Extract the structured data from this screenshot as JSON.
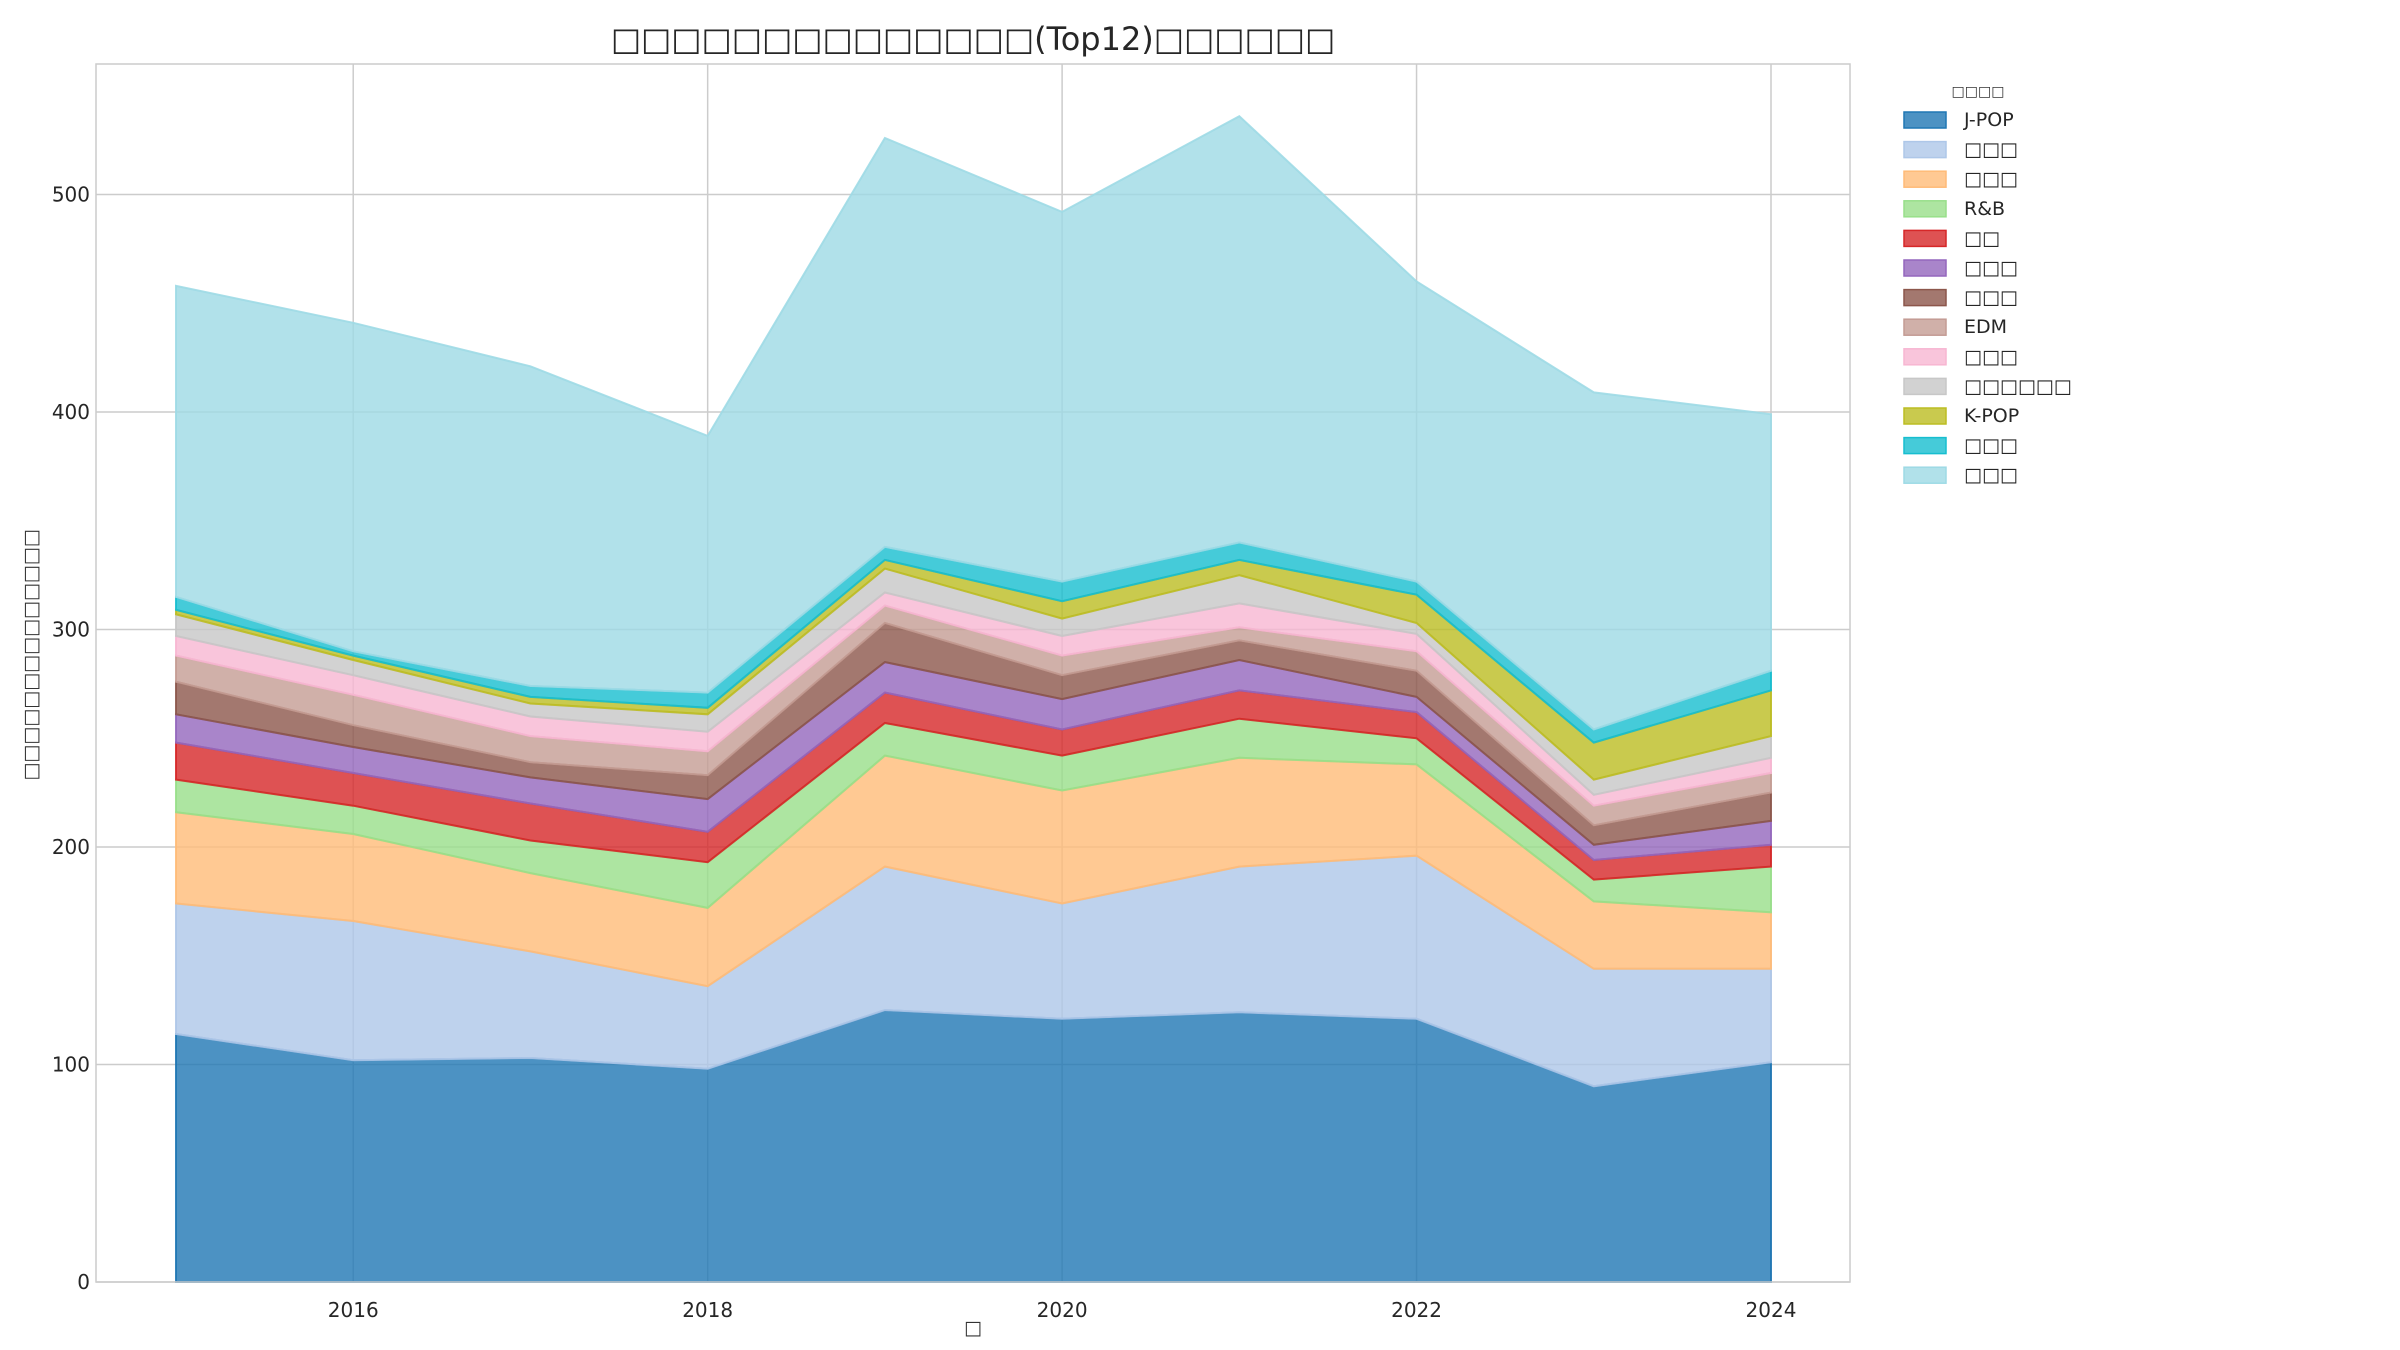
{
  "chart_data": {
    "type": "area",
    "stacked": true,
    "title": "□□□□□□□□□□□□□□(Top12)□□□□□□",
    "xlabel": "□",
    "ylabel": "□□□□□□□□□□□□□□",
    "x": [
      2015,
      2016,
      2017,
      2018,
      2019,
      2020,
      2021,
      2022,
      2023,
      2024
    ],
    "xticks": [
      2016,
      2018,
      2020,
      2022,
      2024
    ],
    "ylim": [
      0,
      560
    ],
    "yticks": [
      0,
      100,
      200,
      300,
      400,
      500
    ],
    "grid": true,
    "legend": {
      "title": "□□□□",
      "placement": "outside-right-top"
    },
    "series": [
      {
        "name": "J-POP",
        "color": "#1f77b4",
        "values": [
          114,
          102,
          103,
          98,
          125,
          121,
          124,
          121,
          90,
          101
        ]
      },
      {
        "name": "□□□",
        "color": "#aec7e8",
        "values": [
          60,
          64,
          49,
          38,
          66,
          53,
          67,
          75,
          54,
          43
        ]
      },
      {
        "name": "□□□",
        "color": "#ffbb78",
        "values": [
          42,
          40,
          36,
          36,
          51,
          52,
          50,
          42,
          31,
          26
        ]
      },
      {
        "name": "R&B",
        "color": "#98df8a",
        "values": [
          15,
          13,
          15,
          21,
          15,
          16,
          18,
          12,
          10,
          21
        ]
      },
      {
        "name": "□□",
        "color": "#d62728",
        "values": [
          17,
          15,
          17,
          14,
          14,
          12,
          13,
          12,
          9,
          10
        ]
      },
      {
        "name": "□□□",
        "color": "#9467bd",
        "values": [
          13,
          12,
          12,
          15,
          14,
          14,
          14,
          7,
          7,
          11
        ]
      },
      {
        "name": "□□□",
        "color": "#8c564b",
        "values": [
          15,
          10,
          7,
          11,
          18,
          11,
          9,
          12,
          9,
          13
        ]
      },
      {
        "name": "EDM",
        "color": "#c49c94",
        "values": [
          12,
          14,
          12,
          11,
          8,
          9,
          6,
          9,
          9,
          9
        ]
      },
      {
        "name": "□□□",
        "color": "#f7b6d2",
        "values": [
          9,
          9,
          9,
          9,
          6,
          9,
          11,
          8,
          5,
          7
        ]
      },
      {
        "name": "□□□□□□",
        "color": "#c7c7c7",
        "values": [
          10,
          7,
          6,
          8,
          11,
          8,
          13,
          5,
          7,
          10
        ]
      },
      {
        "name": "K-POP",
        "color": "#bcbd22",
        "values": [
          2,
          2,
          3,
          3,
          4,
          8,
          7,
          13,
          17,
          21
        ]
      },
      {
        "name": "□□□",
        "color": "#17becf",
        "values": [
          6,
          2,
          5,
          7,
          6,
          9,
          8,
          6,
          6,
          9
        ]
      },
      {
        "name": "□□□",
        "color": "#9edae5",
        "values": [
          143,
          151,
          147,
          118,
          188,
          170,
          196,
          138,
          155,
          118
        ]
      }
    ]
  }
}
